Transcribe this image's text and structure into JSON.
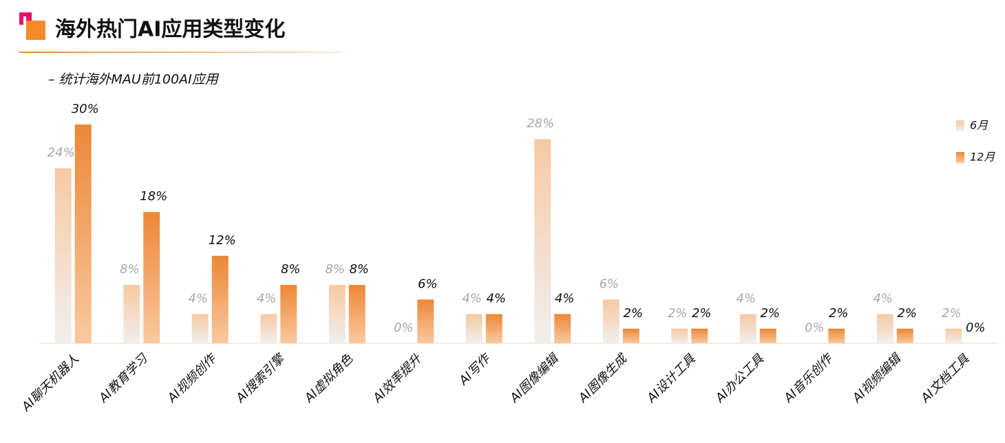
{
  "chart_data": {
    "type": "bar",
    "title": "海外热门AI应用类型变化",
    "subtitle": "– 统计海外MAU前100AI应用",
    "categories": [
      "AI聊天机器人",
      "AI教育学习",
      "AI视频创作",
      "AI搜索引擎",
      "AI虚拟角色",
      "AI效率提升",
      "AI写作",
      "AI图像编辑",
      "AI图像生成",
      "AI设计工具",
      "AI办公工具",
      "AI音乐创作",
      "AI视频编辑",
      "AI文档工具"
    ],
    "series": [
      {
        "name": "6月",
        "color": "#f7c9a3",
        "values": [
          24,
          8,
          4,
          4,
          8,
          0,
          4,
          28,
          6,
          2,
          4,
          0,
          4,
          2
        ],
        "value_labels": [
          "24%",
          "8%",
          "4%",
          "4%",
          "8%",
          "0%",
          "4%",
          "28%",
          "6%",
          "2%",
          "4%",
          "0%",
          "4%",
          "2%"
        ]
      },
      {
        "name": "12月",
        "color": "#ec8736",
        "values": [
          30,
          18,
          12,
          8,
          8,
          6,
          4,
          4,
          2,
          2,
          2,
          2,
          2,
          0
        ],
        "value_labels": [
          "30%",
          "18%",
          "12%",
          "8%",
          "8%",
          "6%",
          "4%",
          "4%",
          "2%",
          "2%",
          "2%",
          "2%",
          "2%",
          "0%"
        ]
      }
    ],
    "legend": "top-right"
  }
}
